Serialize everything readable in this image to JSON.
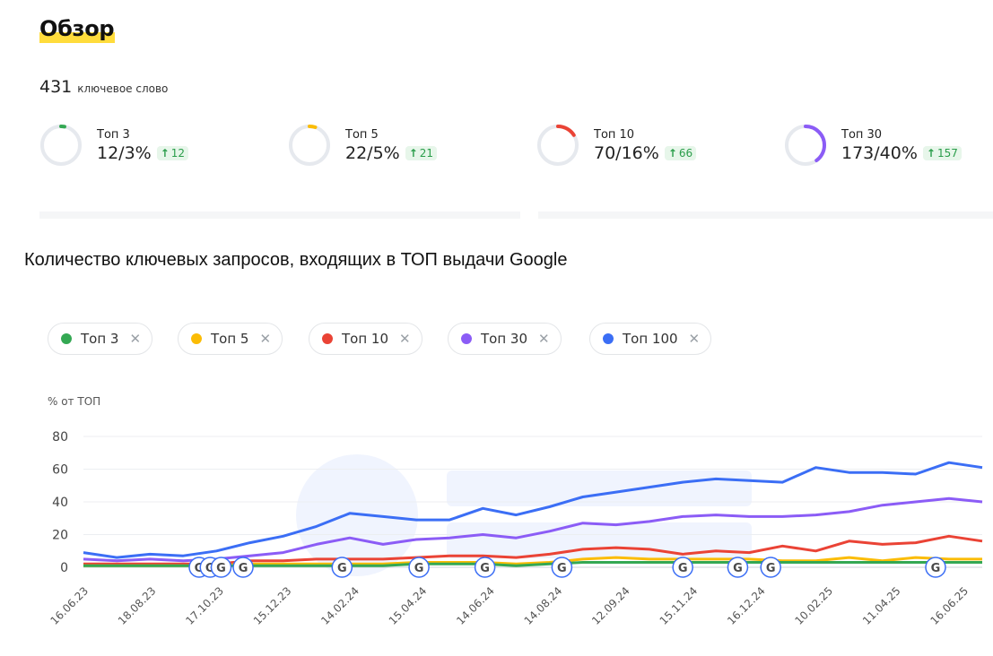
{
  "overview": {
    "title": "Обзор",
    "keyword_count": "431",
    "keyword_label": "ключевое слово",
    "stats": [
      {
        "label": "Топ 3",
        "value": "12/3%",
        "delta": "12",
        "color": "#34a853",
        "fraction": 0.03
      },
      {
        "label": "Топ 5",
        "value": "22/5%",
        "delta": "21",
        "color": "#fbbc05",
        "fraction": 0.05
      },
      {
        "label": "Топ 10",
        "value": "70/16%",
        "delta": "66",
        "color": "#ea4335",
        "fraction": 0.16
      },
      {
        "label": "Топ 30",
        "value": "173/40%",
        "delta": "157",
        "color": "#8b5cf6",
        "fraction": 0.4
      }
    ]
  },
  "chart_heading": "Количество ключевых запросов, входящих в ТОП выдачи Google",
  "legend_chips": [
    {
      "label": "Топ 3",
      "color": "#34a853"
    },
    {
      "label": "Топ 5",
      "color": "#fbbc05"
    },
    {
      "label": "Топ 10",
      "color": "#ea4335"
    },
    {
      "label": "Топ 30",
      "color": "#8b5cf6"
    },
    {
      "label": "Топ 100",
      "color": "#3b6ef5"
    }
  ],
  "chart_data": {
    "type": "line",
    "ylabel": "% от ТОП",
    "ylim": [
      0,
      80
    ],
    "yticks": [
      0,
      20,
      40,
      60,
      80
    ],
    "grid": true,
    "x_tick_labels": [
      "16.06.23",
      "18.08.23",
      "17.10.23",
      "15.12.23",
      "14.02.24",
      "15.04.24",
      "14.06.24",
      "14.08.24",
      "12.09.24",
      "15.11.24",
      "16.12.24",
      "10.02.25",
      "11.04.25",
      "16.06.25"
    ],
    "series": [
      {
        "name": "Топ 100",
        "color": "#3b6ef5",
        "values": [
          9,
          6,
          8,
          7,
          10,
          15,
          19,
          25,
          33,
          31,
          29,
          29,
          36,
          32,
          37,
          43,
          46,
          49,
          52,
          54,
          53,
          52,
          61,
          58,
          58,
          57,
          64,
          61
        ]
      },
      {
        "name": "Топ 30",
        "color": "#8b5cf6",
        "values": [
          5,
          4,
          5,
          4,
          5,
          7,
          9,
          14,
          18,
          14,
          17,
          18,
          20,
          18,
          22,
          27,
          26,
          28,
          31,
          32,
          31,
          31,
          32,
          34,
          38,
          40,
          42,
          40
        ]
      },
      {
        "name": "Топ 10",
        "color": "#ea4335",
        "values": [
          2,
          2,
          2,
          2,
          2,
          4,
          4,
          5,
          5,
          5,
          6,
          7,
          7,
          6,
          8,
          11,
          12,
          11,
          8,
          10,
          9,
          13,
          10,
          16,
          14,
          15,
          19,
          16
        ]
      },
      {
        "name": "Топ 5",
        "color": "#fbbc05",
        "values": [
          1,
          1,
          1,
          1,
          1,
          2,
          2,
          2,
          2,
          2,
          3,
          3,
          3,
          2,
          3,
          5,
          6,
          5,
          5,
          5,
          5,
          4,
          4,
          6,
          4,
          6,
          5,
          5
        ]
      },
      {
        "name": "Топ 3",
        "color": "#34a853",
        "values": [
          1,
          1,
          1,
          1,
          1,
          1,
          1,
          1,
          1,
          1,
          2,
          2,
          2,
          1,
          2,
          3,
          3,
          3,
          3,
          3,
          3,
          3,
          3,
          3,
          3,
          3,
          3,
          3
        ]
      }
    ],
    "annotation_points": [
      4,
      5,
      6,
      8,
      17,
      24,
      30,
      37,
      48,
      53,
      56,
      71
    ]
  }
}
